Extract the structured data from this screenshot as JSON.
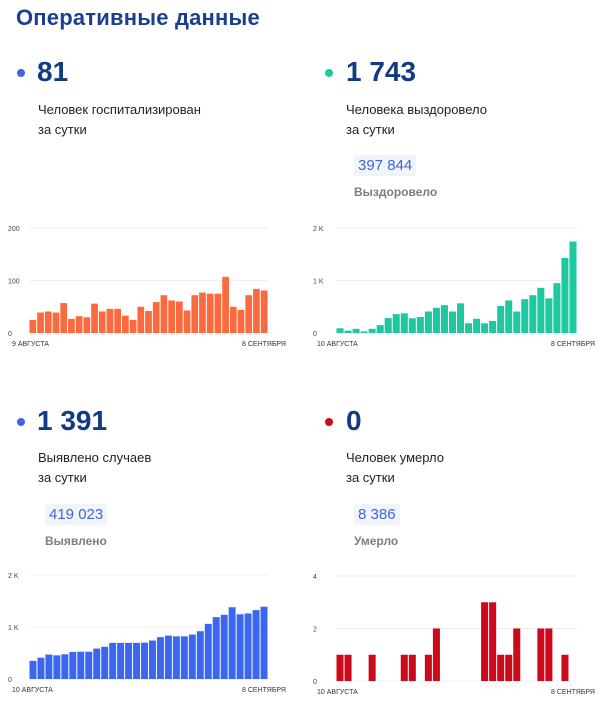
{
  "header": {
    "title": "Оперативные данные"
  },
  "blocks": [
    {
      "id": "hospitalized",
      "value": "81",
      "dot_color": "#3b67e0",
      "caption_line1": "Человек госпитализирован",
      "caption_line2": "за сутки",
      "total": null,
      "total_label": null
    },
    {
      "id": "recovered",
      "value": "1 743",
      "dot_color": "#1ec8a0",
      "caption_line1": "Человека выздоровело",
      "caption_line2": "за сутки",
      "total": "397 844",
      "total_label": "Выздоровело"
    },
    {
      "id": "cases",
      "value": "1 391",
      "dot_color": "#3b67e0",
      "caption_line1": "Выявлено случаев",
      "caption_line2": "за сутки",
      "total": "419 023",
      "total_label": "Выявлено"
    },
    {
      "id": "deaths",
      "value": "0",
      "dot_color": "#cc0a1c",
      "caption_line1": "Человек умерло",
      "caption_line2": "за сутки",
      "total": "8 386",
      "total_label": "Умерло"
    }
  ],
  "chart_data": [
    {
      "type": "bar",
      "title": "Человек госпитализирован за сутки",
      "color": "#fb6a3e",
      "ylim": [
        0,
        200
      ],
      "yticks": [
        "0",
        "100",
        "200"
      ],
      "ytick_values": [
        0,
        100,
        200
      ],
      "x_start_label": "9 АВГУСТА",
      "x_end_label": "8 СЕНТЯБРЯ",
      "grid": true,
      "values": [
        25,
        39,
        41,
        39,
        57,
        27,
        32,
        30,
        56,
        41,
        46,
        46,
        33,
        25,
        50,
        42,
        59,
        72,
        62,
        60,
        43,
        72,
        77,
        75,
        75,
        107,
        50,
        44,
        72,
        84,
        81
      ]
    },
    {
      "type": "bar",
      "title": "Человека выздоровело за сутки",
      "color": "#1ec8a0",
      "ylim": [
        0,
        2000
      ],
      "yticks": [
        "0",
        "1 K",
        "2 K"
      ],
      "ytick_values": [
        0,
        1000,
        2000
      ],
      "x_start_label": "10 АВГУСТА",
      "x_end_label": "8 СЕНТЯБРЯ",
      "grid": true,
      "values": [
        90,
        45,
        80,
        30,
        80,
        150,
        285,
        360,
        375,
        280,
        305,
        410,
        480,
        530,
        410,
        565,
        185,
        270,
        185,
        230,
        515,
        620,
        410,
        645,
        720,
        860,
        660,
        950,
        1430,
        1743
      ]
    },
    {
      "type": "bar",
      "title": "Выявлено случаев за сутки",
      "color": "#3b67f0",
      "ylim": [
        0,
        2000
      ],
      "yticks": [
        "0",
        "1 K",
        "2 K"
      ],
      "ytick_values": [
        0,
        1000,
        2000
      ],
      "x_start_label": "10 АВГУСТА",
      "x_end_label": "8 СЕНТЯБРЯ",
      "grid": true,
      "values": [
        350,
        410,
        470,
        455,
        475,
        520,
        525,
        525,
        585,
        620,
        695,
        695,
        695,
        695,
        700,
        740,
        805,
        835,
        820,
        820,
        855,
        920,
        1060,
        1190,
        1235,
        1380,
        1245,
        1260,
        1325,
        1391
      ]
    },
    {
      "type": "bar",
      "title": "Человек умерло за сутки",
      "color": "#cc0a1c",
      "ylim": [
        0,
        4
      ],
      "yticks": [
        "0",
        "2",
        "4"
      ],
      "ytick_values": [
        0,
        2,
        4
      ],
      "x_start_label": "10 АВГУСТА",
      "x_end_label": "8 СЕНТЯБРЯ",
      "grid": true,
      "values": [
        1,
        1,
        0,
        0,
        1,
        0,
        0,
        0,
        1,
        1,
        0,
        1,
        2,
        0,
        0,
        0,
        0,
        0,
        3,
        3,
        1,
        1,
        2,
        0,
        0,
        2,
        2,
        0,
        1,
        0
      ]
    }
  ]
}
